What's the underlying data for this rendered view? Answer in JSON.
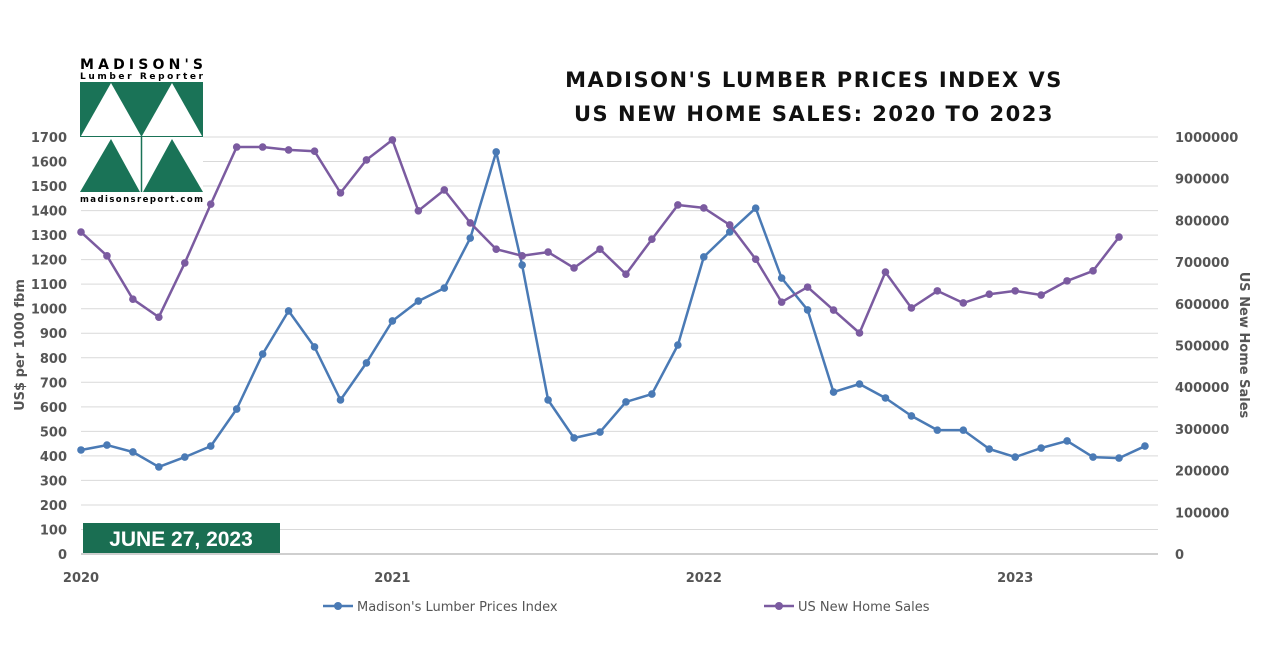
{
  "chart_data": {
    "type": "line",
    "title_lines": [
      "MADISON'S LUMBER PRICES INDEX VS",
      "US NEW HOME SALES: 2020 TO 2023"
    ],
    "ylabel_left": "US$ per 1000 fbm",
    "ylabel_right": "US New Home Sales",
    "ylim_left": [
      0,
      1700
    ],
    "ylim_right": [
      0,
      1000000
    ],
    "yticks_left": [
      "0",
      "100",
      "200",
      "300",
      "400",
      "500",
      "600",
      "700",
      "800",
      "900",
      "1000",
      "1100",
      "1200",
      "1300",
      "1400",
      "1500",
      "1600",
      "1700"
    ],
    "yticks_right": [
      "0",
      "100000",
      "200000",
      "300000",
      "400000",
      "500000",
      "600000",
      "700000",
      "800000",
      "900000",
      "1000000"
    ],
    "xticks": [
      {
        "label": "2020",
        "month_index": 0
      },
      {
        "label": "2021",
        "month_index": 12
      },
      {
        "label": "2022",
        "month_index": 24
      },
      {
        "label": "2023",
        "month_index": 36
      }
    ],
    "x_unit": "months since Jan 2020",
    "grid": true,
    "legend_position": "bottom",
    "series": [
      {
        "name": "Madison's Lumber Prices Index",
        "axis": "left",
        "color": "#4a7ab5",
        "values": [
          424,
          444,
          416,
          355,
          395,
          440,
          591,
          815,
          991,
          844,
          628,
          779,
          950,
          1031,
          1084,
          1288,
          1639,
          1178,
          628,
          473,
          497,
          620,
          652,
          852,
          1211,
          1313,
          1410,
          1125,
          995,
          660,
          693,
          636,
          563,
          505,
          505,
          428,
          395,
          432,
          461,
          395,
          391,
          440
        ]
      },
      {
        "name": "US New Home Sales",
        "axis": "right",
        "color": "#7b5ba0",
        "values": [
          772000,
          715000,
          611000,
          568000,
          698000,
          839000,
          976000,
          976000,
          969000,
          966000,
          866000,
          945000,
          993000,
          823000,
          873000,
          794000,
          731000,
          715000,
          724000,
          686000,
          731000,
          671000,
          755000,
          837000,
          830000,
          789000,
          707000,
          604000,
          640000,
          585000,
          530000,
          676000,
          590000,
          631000,
          602000,
          623000,
          631000,
          621000,
          655000,
          679000,
          760000
        ]
      }
    ]
  },
  "logo": {
    "line1": "MADISON'S",
    "line2": "Lumber Reporter",
    "url": "madisonsreport.com"
  },
  "date_badge": "JUNE 27, 2023",
  "colors": {
    "brand_green": "#1a7357",
    "grid": "#d9d9d9"
  }
}
